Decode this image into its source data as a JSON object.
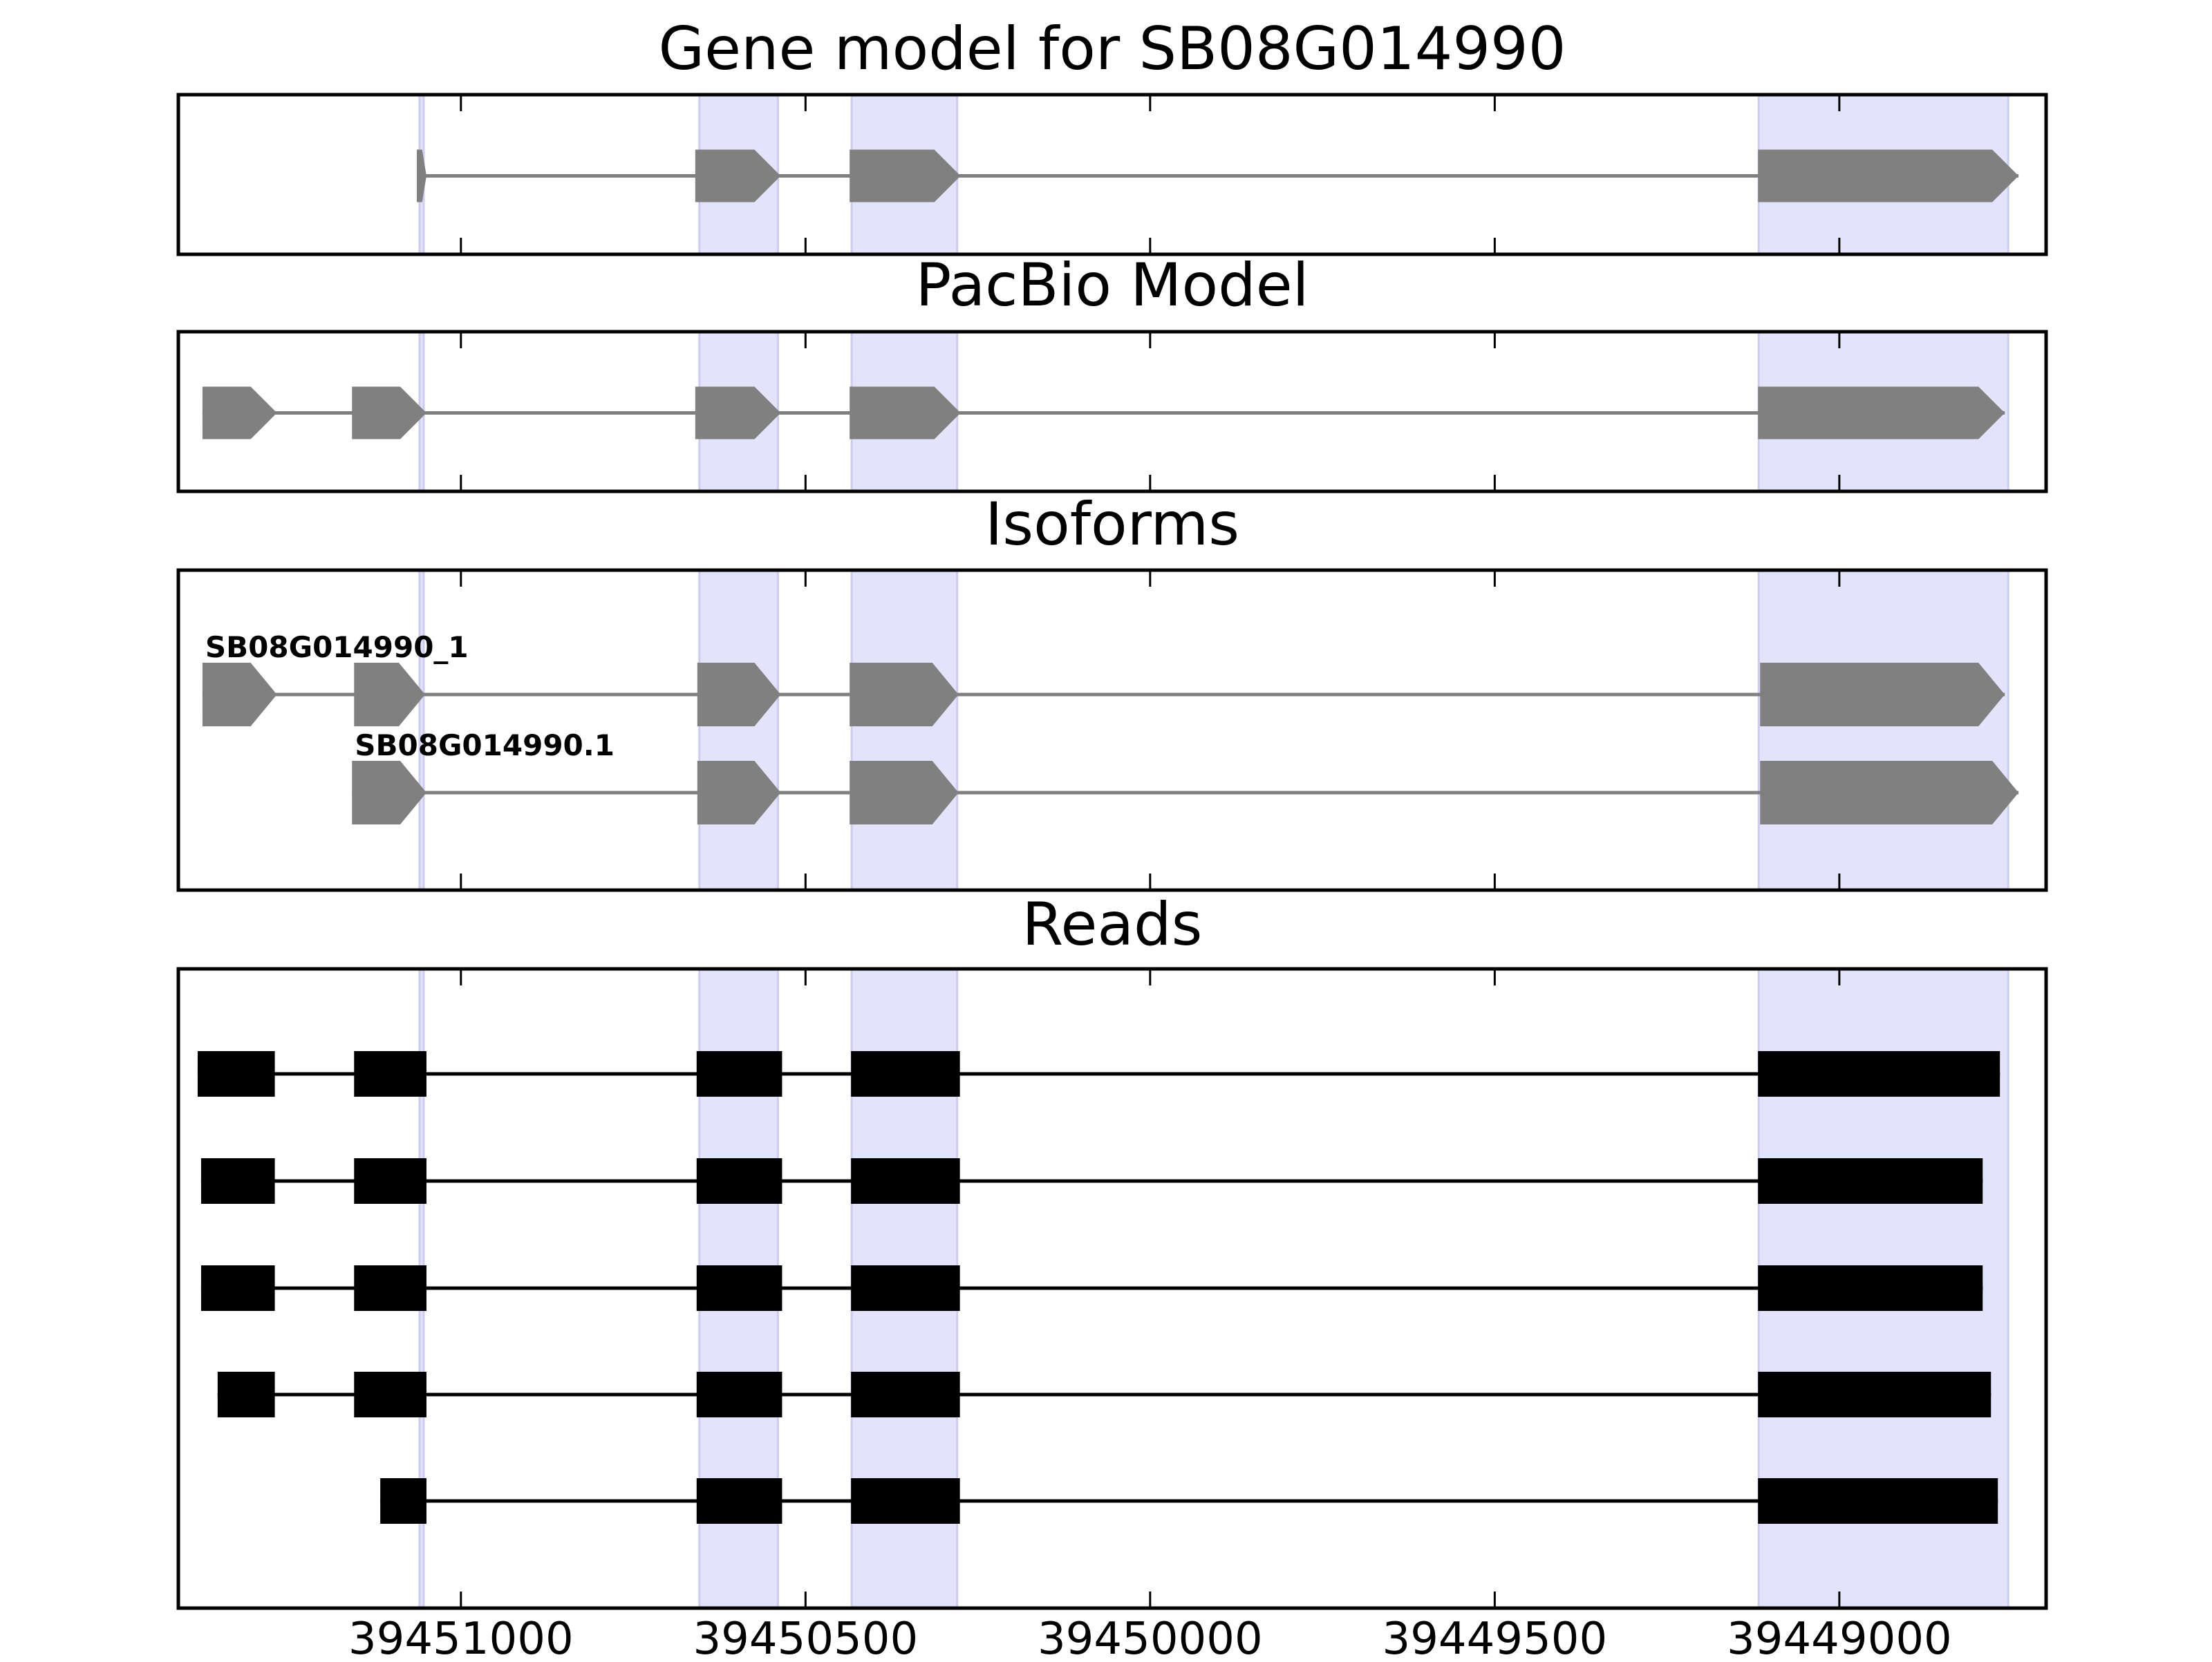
{
  "panels": [
    {
      "key": "gene",
      "title": "Gene model for SB08G014990",
      "kind": "model"
    },
    {
      "key": "pacbio",
      "title": "PacBio Model",
      "kind": "model"
    },
    {
      "key": "isoforms",
      "title": "Isoforms",
      "kind": "isoforms"
    },
    {
      "key": "reads",
      "title": "Reads",
      "kind": "reads"
    }
  ],
  "colors": {
    "exon": "#808080",
    "read": "#000000",
    "highlight": "#e3e3fb",
    "highlight_edge": "#ccccee",
    "frame": "#000000"
  },
  "chart_data": {
    "type": "gene_structure",
    "xlim": [
      39451410,
      39448700
    ],
    "x_ticks": [
      39451000,
      39450500,
      39450000,
      39449500,
      39449000
    ],
    "x_tick_labels": [
      "39451000",
      "39450500",
      "39450000",
      "39449500",
      "39449000"
    ],
    "highlight_regions": [
      [
        39451060,
        39451054
      ],
      [
        39450654,
        39450540
      ],
      [
        39450433,
        39450280
      ],
      [
        39449117,
        39448755
      ]
    ],
    "gene_model": {
      "exons": [
        [
          39451064,
          39451050
        ],
        [
          39450660,
          39450536
        ],
        [
          39450436,
          39450275
        ],
        [
          39449118,
          39448740
        ]
      ]
    },
    "pacbio_model": {
      "exons": [
        [
          39451375,
          39451267
        ],
        [
          39451158,
          39451050
        ],
        [
          39450660,
          39450536
        ],
        [
          39450436,
          39450275
        ],
        [
          39449118,
          39448760
        ]
      ]
    },
    "isoforms": [
      {
        "label": "SB08G014990_1",
        "exons": [
          [
            39451375,
            39451267
          ],
          [
            39451155,
            39451052
          ],
          [
            39450657,
            39450536
          ],
          [
            39450436,
            39450278
          ],
          [
            39449115,
            39448760
          ]
        ]
      },
      {
        "label": "SB08G014990.1",
        "exons": [
          [
            39451158,
            39451050
          ],
          [
            39450657,
            39450536
          ],
          [
            39450436,
            39450278
          ],
          [
            39449115,
            39448740
          ]
        ]
      }
    ],
    "reads": [
      {
        "exons": [
          [
            39451382,
            39451270
          ],
          [
            39451155,
            39451050
          ],
          [
            39450658,
            39450534
          ],
          [
            39450434,
            39450276
          ],
          [
            39449118,
            39448767
          ]
        ]
      },
      {
        "exons": [
          [
            39451377,
            39451270
          ],
          [
            39451155,
            39451050
          ],
          [
            39450658,
            39450534
          ],
          [
            39450434,
            39450276
          ],
          [
            39449118,
            39448792
          ]
        ]
      },
      {
        "exons": [
          [
            39451377,
            39451270
          ],
          [
            39451155,
            39451050
          ],
          [
            39450658,
            39450534
          ],
          [
            39450434,
            39450276
          ],
          [
            39449118,
            39448792
          ]
        ]
      },
      {
        "exons": [
          [
            39451353,
            39451270
          ],
          [
            39451155,
            39451050
          ],
          [
            39450658,
            39450534
          ],
          [
            39450434,
            39450276
          ],
          [
            39449118,
            39448780
          ]
        ]
      },
      {
        "exons": [
          [
            39451117,
            39451050
          ],
          [
            39450658,
            39450534
          ],
          [
            39450434,
            39450276
          ],
          [
            39449118,
            39448770
          ]
        ]
      }
    ]
  }
}
